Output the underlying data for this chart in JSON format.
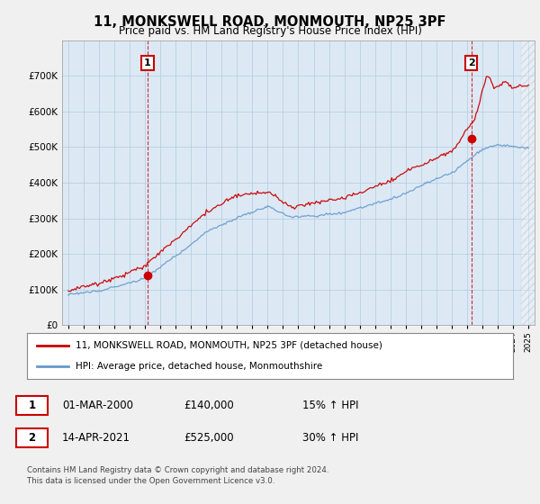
{
  "title": "11, MONKSWELL ROAD, MONMOUTH, NP25 3PF",
  "subtitle": "Price paid vs. HM Land Registry's House Price Index (HPI)",
  "background_color": "#f0f0f0",
  "plot_bg_color": "#dce9f5",
  "grid_color": "#b8cfe0",
  "sale1": {
    "date_num": 2000.17,
    "price": 140000,
    "label": "1",
    "date_str": "01-MAR-2000",
    "pct": "15%"
  },
  "sale2": {
    "date_num": 2021.28,
    "price": 525000,
    "label": "2",
    "date_str": "14-APR-2021",
    "pct": "30%"
  },
  "ylim": [
    0,
    800000
  ],
  "xlim_start": 1994.6,
  "xlim_end": 2025.4,
  "line1_color": "#cc0000",
  "line2_color": "#6699cc",
  "legend_label1": "11, MONKSWELL ROAD, MONMOUTH, NP25 3PF (detached house)",
  "legend_label2": "HPI: Average price, detached house, Monmouthshire",
  "footnote": "Contains HM Land Registry data © Crown copyright and database right 2024.\nThis data is licensed under the Open Government Licence v3.0.",
  "table_row1": [
    "1",
    "01-MAR-2000",
    "£140,000",
    "15% ↑ HPI"
  ],
  "table_row2": [
    "2",
    "14-APR-2021",
    "£525,000",
    "30% ↑ HPI"
  ]
}
